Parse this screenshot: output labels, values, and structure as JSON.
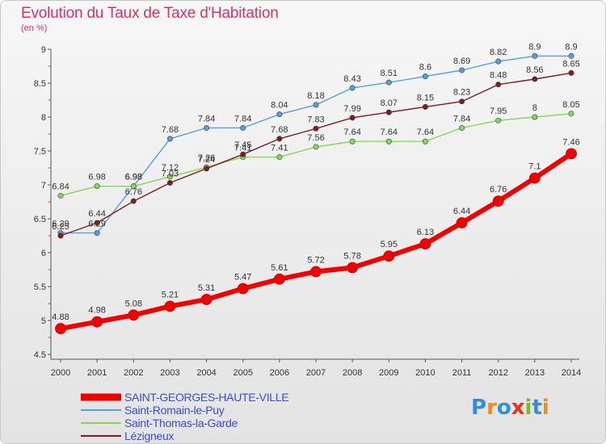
{
  "title": "Evolution du Taux de Taxe d'Habitation",
  "unit_label": "(en %)",
  "logo": {
    "text": "Proxiti",
    "letter_colors": [
      "#2f8fd8",
      "#f08a1c",
      "#2f8fd8",
      "#e8321c",
      "#7dbb2c",
      "#2f8fd8",
      "#f08a1c"
    ]
  },
  "chart_data": {
    "type": "line",
    "title": "Evolution du Taux de Taxe d'Habitation",
    "ylabel": "(en %)",
    "xlabel": "",
    "x": [
      "2000",
      "2001",
      "2002",
      "2003",
      "2004",
      "2005",
      "2006",
      "2007",
      "2008",
      "2009",
      "2010",
      "2011",
      "2012",
      "2013",
      "2014"
    ],
    "ylim": [
      4.5,
      9
    ],
    "yticks": [
      "4.5",
      "5",
      "5.5",
      "6",
      "6.5",
      "7",
      "7.5",
      "8",
      "8.5",
      "9"
    ],
    "grid": false,
    "legend_position": "bottom-left",
    "series": [
      {
        "name": "SAINT-GEORGES-HAUTE-VILLE",
        "color": "#ee0000",
        "emphasis": true,
        "values": [
          4.88,
          4.98,
          5.08,
          5.21,
          5.31,
          5.47,
          5.61,
          5.72,
          5.78,
          5.95,
          6.13,
          6.44,
          6.76,
          7.1,
          7.46
        ],
        "labels": [
          "4.88",
          "4.98",
          "5.08",
          "5.21",
          "5.31",
          "5.47",
          "5.61",
          "5.72",
          "5.78",
          "5.95",
          "6.13",
          "6.44",
          "6.76",
          "7.1",
          "7.46"
        ]
      },
      {
        "name": "Saint-Romain-le-Puy",
        "color": "#5a9fd4",
        "emphasis": false,
        "values": [
          6.29,
          6.29,
          6.98,
          7.68,
          7.84,
          7.84,
          8.04,
          8.18,
          8.43,
          8.51,
          8.6,
          8.69,
          8.82,
          8.9,
          8.9
        ],
        "labels": [
          "6.29",
          "6.29",
          "6.98",
          "7.68",
          "7.84",
          "7.84",
          "8.04",
          "8.18",
          "8.43",
          "8.51",
          "8.6",
          "8.69",
          "8.82",
          "8.9",
          "8.9"
        ]
      },
      {
        "name": "Saint-Thomas-la-Garde",
        "color": "#86d65a",
        "emphasis": false,
        "values": [
          6.84,
          6.98,
          6.98,
          7.12,
          7.26,
          7.41,
          7.41,
          7.56,
          7.64,
          7.64,
          7.64,
          7.84,
          7.95,
          8,
          8.05
        ],
        "labels": [
          "6.84",
          "6.98",
          "6.98",
          "7.12",
          "7.26",
          "7.41",
          "7.41",
          "7.56",
          "7.64",
          "7.64",
          "7.64",
          "7.84",
          "7.95",
          "8",
          "8.05"
        ]
      },
      {
        "name": "Lézigneux",
        "color": "#7a1e22",
        "emphasis": false,
        "values": [
          6.25,
          6.44,
          6.76,
          7.03,
          7.24,
          7.45,
          7.68,
          7.83,
          7.99,
          8.07,
          8.15,
          8.23,
          8.48,
          8.56,
          8.65
        ],
        "labels": [
          "6.25",
          "6.44",
          "6.76",
          "7.03",
          "7.24",
          "7.45",
          "7.68",
          "7.83",
          "7.99",
          "8.07",
          "8.15",
          "8.23",
          "8.48",
          "8.56",
          "8.65"
        ]
      }
    ]
  }
}
